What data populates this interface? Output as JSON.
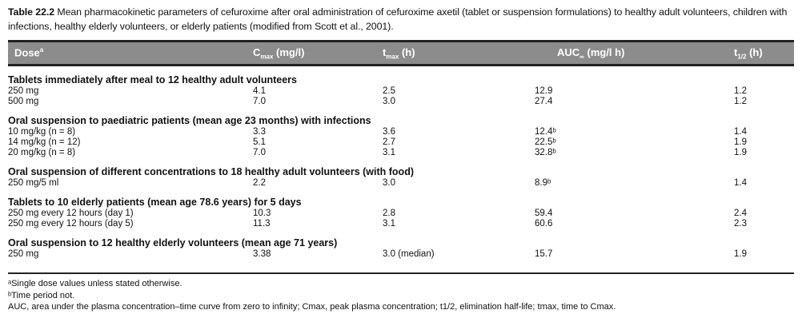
{
  "caption": {
    "label": "Table 22.2",
    "text": "Mean pharmacokinetic parameters of cefuroxime after oral administration of cefuroxime axetil (tablet or suspension formulations) to healthy adult volunteers, children with infections, healthy elderly volunteers, or elderly patients (modified from Scott et al., 2001)."
  },
  "header": {
    "dose": "Dose",
    "dose_sup": "a",
    "cmax": "C",
    "cmax_sub": "max",
    "cmax_unit": " (mg/l)",
    "tmax": "t",
    "tmax_sub": "max",
    "tmax_unit": " (h)",
    "auc": "AUC",
    "auc_sub": "∞",
    "auc_unit": " (mg/l h)",
    "thalf": "t",
    "thalf_sub": "1/2",
    "thalf_unit": " (h)"
  },
  "sections": [
    {
      "title": "Tablets immediately after meal to 12 healthy adult volunteers",
      "rows": [
        [
          "250 mg",
          "4.1",
          "2.5",
          "12.9",
          "1.2"
        ],
        [
          "500 mg",
          "7.0",
          "3.0",
          "27.4",
          "1.2"
        ]
      ]
    },
    {
      "title": "Oral suspension to paediatric patients (mean age 23 months) with infections",
      "rows": [
        [
          "10 mg/kg (n = 8)",
          "3.3",
          "3.6",
          "12.4ᵇ",
          "1.4"
        ],
        [
          "14 mg/kg (n = 12)",
          "5.1",
          "2.7",
          "22.5ᵇ",
          "1.9"
        ],
        [
          "20 mg/kg (n = 8)",
          "7.0",
          "3.1",
          "32.8ᵇ",
          "1.9"
        ]
      ]
    },
    {
      "title": "Oral suspension of different concentrations to 18 healthy adult volunteers (with food)",
      "rows": [
        [
          "250 mg/5 ml",
          "2.2",
          "3.0",
          "8.9ᵇ",
          "1.4"
        ]
      ]
    },
    {
      "title": "Tablets to 10 elderly patients (mean age 78.6 years) for 5 days",
      "rows": [
        [
          "250 mg every 12 hours (day 1)",
          "10.3",
          "2.8",
          "59.4",
          "2.4"
        ],
        [
          "250 mg every 12 hours (day 5)",
          "11.3",
          "3.1",
          "60.6",
          "2.3"
        ]
      ]
    },
    {
      "title": "Oral suspension to 12 healthy elderly volunteers (mean age 71 years)",
      "rows": [
        [
          "250 mg",
          "3.38",
          "3.0 (median)",
          "15.7",
          "1.9"
        ]
      ]
    }
  ],
  "footnotes": [
    "ᵃSingle dose values unless stated otherwise.",
    "ᵇTime period not.",
    "AUC, area under the plasma concentration–time curve from zero to infinity; Cmax, peak plasma concentration; t1/2, elimination half-life; tmax, time to Cmax."
  ]
}
